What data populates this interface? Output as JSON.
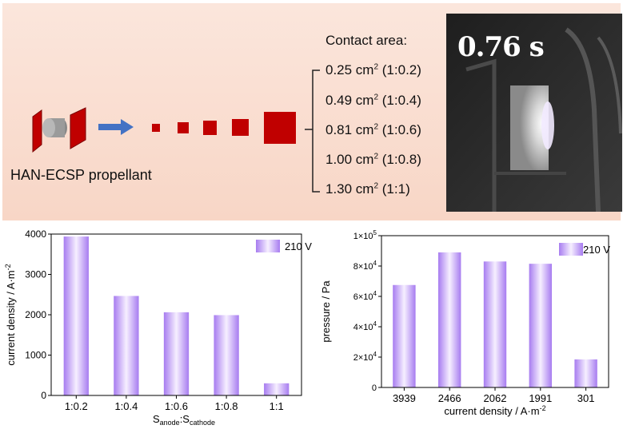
{
  "illustration": {
    "label": "HAN-ECSP propellant",
    "contact_title": "Contact area:",
    "contact_areas": [
      {
        "value": "0.25 cm",
        "sup": "2",
        "ratio": " (1:0.2)"
      },
      {
        "value": "0.49 cm",
        "sup": "2",
        "ratio": " (1:0.4)"
      },
      {
        "value": "0.81 cm",
        "sup": "2",
        "ratio": " (1:0.6)"
      },
      {
        "value": "1.00 cm",
        "sup": "2",
        "ratio": " (1:0.8)"
      },
      {
        "value": "1.30 cm",
        "sup": "2",
        "ratio": " (1:1)"
      }
    ],
    "photo_time": "0.76 s",
    "colors": {
      "panel_bg": "#f8d9ca",
      "electrode": "#c00000",
      "arrow": "#4472c4"
    }
  },
  "chart_data": [
    {
      "type": "bar",
      "categories": [
        "1:0.2",
        "1:0.4",
        "1:0.6",
        "1:0.8",
        "1:1"
      ],
      "series": [
        {
          "name": "210 V",
          "values": [
            3939,
            2466,
            2062,
            1991,
            301
          ]
        }
      ],
      "xlabel_main": "S",
      "xlabel_sub1": "anode",
      "xlabel_sep": ":S",
      "xlabel_sub2": "cathode",
      "ylabel": "current density / A·m",
      "ylabel_sup": "-2",
      "ylim": [
        0,
        4000
      ],
      "yticks": [
        "0",
        "1000",
        "2000",
        "3000",
        "4000"
      ],
      "legend_position": "top-right",
      "bar_color": "#b48cf0"
    },
    {
      "type": "bar",
      "categories": [
        "3939",
        "2466",
        "2062",
        "1991",
        "301"
      ],
      "series": [
        {
          "name": "210 V",
          "values": [
            67500,
            89000,
            83000,
            81500,
            18500
          ]
        }
      ],
      "xlabel": "current density / A·m",
      "xlabel_sup": "-2",
      "ylabel": "pressure / Pa",
      "ylim": [
        0,
        100000
      ],
      "yticks": [
        {
          "base": "0",
          "exp": ""
        },
        {
          "base": "2×10",
          "exp": "4"
        },
        {
          "base": "4×10",
          "exp": "4"
        },
        {
          "base": "6×10",
          "exp": "4"
        },
        {
          "base": "8×10",
          "exp": "4"
        },
        {
          "base": "1×10",
          "exp": "5"
        }
      ],
      "legend_position": "top-right",
      "bar_color": "#b48cf0"
    }
  ]
}
